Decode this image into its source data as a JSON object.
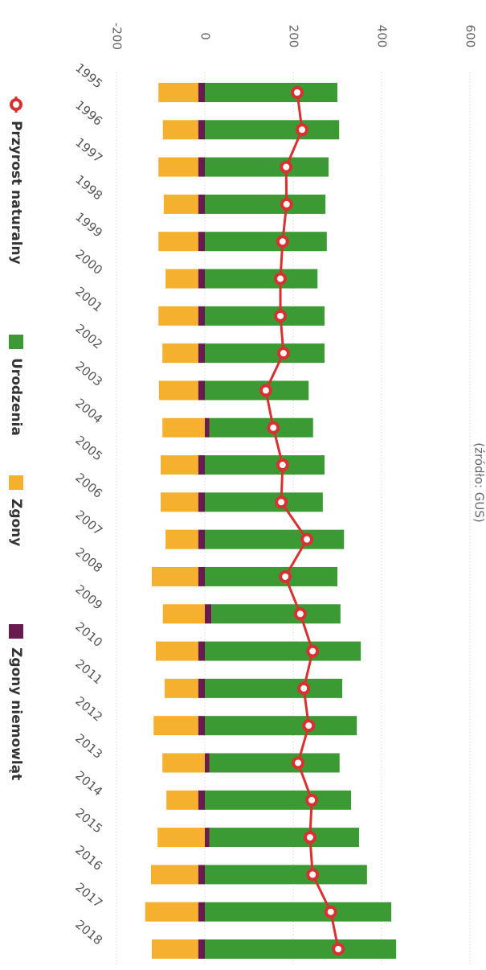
{
  "chart_data": {
    "type": "bar",
    "title": "(źródło: GUS)",
    "stacked": true,
    "orientation": "horizontal",
    "categories": [
      "1995",
      "1996",
      "1997",
      "1998",
      "1999",
      "2000",
      "2001",
      "2002",
      "2003",
      "2004",
      "2005",
      "2006",
      "2007",
      "2008",
      "2009",
      "2010",
      "2011",
      "2012",
      "2013",
      "2014",
      "2015",
      "2016",
      "2017",
      "2018"
    ],
    "series": [
      {
        "name": "Przyrost naturalny",
        "type": "line",
        "color": "#d93030",
        "values": [
          209,
          220,
          184,
          185,
          176,
          171,
          171,
          178,
          138,
          155,
          176,
          173,
          231,
          182,
          216,
          244,
          224,
          235,
          211,
          242,
          238,
          244,
          285,
          302
        ]
      },
      {
        "name": "Urodzenia",
        "type": "bar",
        "color": "#3c9a34",
        "values": [
          300,
          304,
          280,
          273,
          276,
          255,
          271,
          271,
          235,
          235,
          271,
          267,
          315,
          300,
          292,
          353,
          311,
          344,
          295,
          331,
          339,
          367,
          422,
          433
        ]
      },
      {
        "name": "Zgony",
        "type": "bar",
        "color": "#f5b02e",
        "values": [
          -90,
          -80,
          -90,
          -78,
          -90,
          -74,
          -90,
          -81,
          -89,
          -96,
          -85,
          -85,
          -74,
          -105,
          -95,
          -96,
          -76,
          -101,
          -96,
          -72,
          -107,
          -107,
          -120,
          -105
        ]
      },
      {
        "name": "Zgony niemowląt",
        "type": "bar",
        "color": "#6a1b4d",
        "values": [
          -15,
          -15,
          -15,
          -15,
          -15,
          -15,
          -15,
          -15,
          -15,
          10,
          -15,
          -15,
          -15,
          -15,
          15,
          -15,
          -15,
          -15,
          10,
          -15,
          10,
          -15,
          -15,
          -15
        ]
      }
    ],
    "xlim": [
      -200,
      600
    ],
    "xticks": [
      -200,
      0,
      200,
      400,
      600
    ],
    "grid": true
  }
}
